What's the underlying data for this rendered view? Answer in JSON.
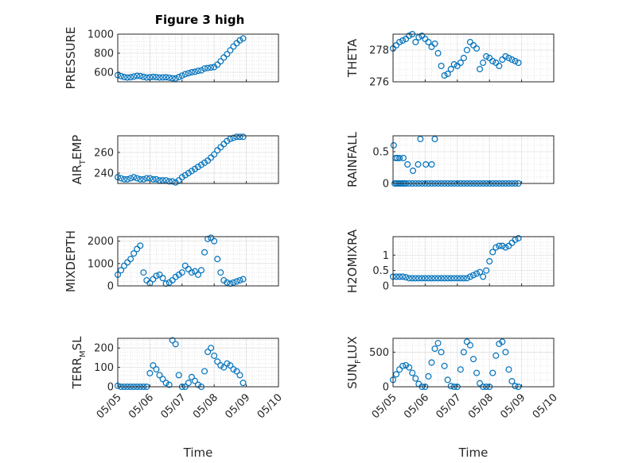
{
  "figure": {
    "title": "Figure 3 high"
  },
  "colors": {
    "marker": "#0072bd",
    "axis": "#262626",
    "grid": "#dfdfdf"
  },
  "chart_data": [
    {
      "type": "scatter",
      "ylabel_main": "PRESSURE",
      "ylabel_sub": "",
      "ylim": [
        500,
        1000
      ],
      "yticks": [
        600,
        800,
        1000
      ],
      "xlim": [
        0,
        5
      ],
      "xticks": [
        "05/05",
        "05/06",
        "05/07",
        "05/08",
        "05/09",
        "05/10"
      ],
      "xlabel": "",
      "grid": true,
      "x": [
        0,
        0.1,
        0.2,
        0.3,
        0.4,
        0.5,
        0.6,
        0.7,
        0.8,
        0.9,
        1.0,
        1.1,
        1.2,
        1.3,
        1.4,
        1.5,
        1.6,
        1.7,
        1.8,
        1.9,
        2.0,
        2.1,
        2.2,
        2.3,
        2.4,
        2.5,
        2.6,
        2.7,
        2.8,
        2.9,
        3.0,
        3.1,
        3.2,
        3.3,
        3.4,
        3.5,
        3.6,
        3.7,
        3.8,
        3.9
      ],
      "y": [
        570,
        560,
        550,
        545,
        548,
        555,
        562,
        560,
        552,
        545,
        548,
        552,
        549,
        545,
        546,
        548,
        543,
        538,
        535,
        550,
        565,
        580,
        590,
        600,
        605,
        615,
        620,
        640,
        645,
        650,
        655,
        680,
        715,
        755,
        790,
        830,
        870,
        905,
        935,
        955
      ]
    },
    {
      "type": "scatter",
      "ylabel_main": "THETA",
      "ylabel_sub": "",
      "ylim": [
        276,
        279
      ],
      "yticks": [
        276,
        278
      ],
      "xlim": [
        0,
        5
      ],
      "xticks": [
        "05/05",
        "05/06",
        "05/07",
        "05/08",
        "05/09",
        "05/10"
      ],
      "xlabel": "",
      "grid": true,
      "x": [
        0,
        0.1,
        0.2,
        0.3,
        0.4,
        0.5,
        0.6,
        0.7,
        0.8,
        0.9,
        1.0,
        1.1,
        1.2,
        1.3,
        1.4,
        1.5,
        1.6,
        1.7,
        1.8,
        1.9,
        2.0,
        2.1,
        2.2,
        2.3,
        2.4,
        2.5,
        2.6,
        2.7,
        2.8,
        2.9,
        3.0,
        3.1,
        3.2,
        3.3,
        3.4,
        3.5,
        3.6,
        3.7,
        3.8,
        3.9
      ],
      "y": [
        278.1,
        278.3,
        278.5,
        278.6,
        278.7,
        278.9,
        279.0,
        278.5,
        278.8,
        278.9,
        278.7,
        278.5,
        278.2,
        278.4,
        277.8,
        277.0,
        276.4,
        276.5,
        276.8,
        277.1,
        277.0,
        277.2,
        277.5,
        278.0,
        278.5,
        278.3,
        278.1,
        276.8,
        277.2,
        277.6,
        277.5,
        277.3,
        277.2,
        277.0,
        277.4,
        277.6,
        277.5,
        277.4,
        277.3,
        277.2
      ]
    },
    {
      "type": "scatter",
      "ylabel_main": "AIR",
      "ylabel_sub": "T",
      "ylabel_rest": "EMP",
      "ylim": [
        230,
        276
      ],
      "yticks": [
        240,
        260
      ],
      "xlim": [
        0,
        5
      ],
      "xticks": [
        "05/05",
        "05/06",
        "05/07",
        "05/08",
        "05/09",
        "05/10"
      ],
      "xlabel": "",
      "grid": true,
      "x": [
        0,
        0.1,
        0.2,
        0.3,
        0.4,
        0.5,
        0.6,
        0.7,
        0.8,
        0.9,
        1.0,
        1.1,
        1.2,
        1.3,
        1.4,
        1.5,
        1.6,
        1.7,
        1.8,
        1.9,
        2.0,
        2.1,
        2.2,
        2.3,
        2.4,
        2.5,
        2.6,
        2.7,
        2.8,
        2.9,
        3.0,
        3.1,
        3.2,
        3.3,
        3.4,
        3.5,
        3.6,
        3.7,
        3.8,
        3.9
      ],
      "y": [
        236,
        235,
        234,
        234,
        235,
        236,
        235,
        234,
        234,
        235,
        235,
        234,
        234,
        233,
        233,
        233,
        232,
        232,
        231,
        233,
        236,
        238,
        240,
        242,
        244,
        246,
        248,
        250,
        252,
        255,
        258,
        262,
        265,
        268,
        271,
        273,
        274,
        275,
        275,
        275
      ]
    },
    {
      "type": "scatter",
      "ylabel_main": "RAINFALL",
      "ylabel_sub": "",
      "ylim": [
        0,
        0.75
      ],
      "yticks": [
        0,
        0.5
      ],
      "xlim": [
        0,
        5
      ],
      "xticks": [
        "05/05",
        "05/06",
        "05/07",
        "05/08",
        "05/09",
        "05/10"
      ],
      "xlabel": "",
      "grid": true,
      "x": [
        0.02,
        0.05,
        0.1,
        0.15,
        0.2,
        0.25,
        0.3,
        0.35,
        0.4,
        0.5,
        0.6,
        0.7,
        0.8,
        0.9,
        1.0,
        1.1,
        1.2,
        1.3,
        1.4,
        1.5,
        1.6,
        1.7,
        1.8,
        1.9,
        2.0,
        2.1,
        2.2,
        2.3,
        2.4,
        2.5,
        2.6,
        2.7,
        2.8,
        2.9,
        3.0,
        3.1,
        3.2,
        3.3,
        3.4,
        3.5,
        3.6,
        3.7,
        3.8,
        3.9,
        0.08,
        0.13,
        0.2,
        0.32,
        0.45,
        0.62,
        0.78,
        0.85,
        1.02,
        1.2,
        1.3
      ],
      "y": [
        0.6,
        0,
        0,
        0,
        0,
        0,
        0,
        0,
        0,
        0,
        0,
        0,
        0,
        0,
        0,
        0,
        0,
        0,
        0,
        0,
        0,
        0,
        0,
        0,
        0,
        0,
        0,
        0,
        0,
        0,
        0,
        0,
        0,
        0,
        0,
        0,
        0,
        0,
        0,
        0,
        0,
        0,
        0,
        0,
        0.4,
        0.4,
        0.4,
        0.4,
        0.3,
        0.2,
        0.3,
        0.7,
        0.3,
        0.3,
        0.7
      ]
    },
    {
      "type": "scatter",
      "ylabel_main": "MIXDEPTH",
      "ylabel_sub": "",
      "ylim": [
        0,
        2200
      ],
      "yticks": [
        0,
        1000,
        2000
      ],
      "xlim": [
        0,
        5
      ],
      "xticks": [
        "05/05",
        "05/06",
        "05/07",
        "05/08",
        "05/09",
        "05/10"
      ],
      "xlabel": "",
      "grid": true,
      "x": [
        0,
        0.1,
        0.2,
        0.3,
        0.4,
        0.5,
        0.6,
        0.7,
        0.8,
        0.9,
        1.0,
        1.1,
        1.2,
        1.3,
        1.4,
        1.5,
        1.6,
        1.7,
        1.8,
        1.9,
        2.0,
        2.1,
        2.2,
        2.3,
        2.4,
        2.5,
        2.6,
        2.7,
        2.8,
        2.9,
        3.0,
        3.1,
        3.2,
        3.3,
        3.4,
        3.5,
        3.6,
        3.7,
        3.8,
        3.9
      ],
      "y": [
        500,
        700,
        900,
        1050,
        1200,
        1450,
        1650,
        1800,
        600,
        250,
        120,
        300,
        450,
        500,
        350,
        100,
        150,
        250,
        400,
        500,
        600,
        900,
        750,
        600,
        650,
        500,
        700,
        1500,
        2100,
        2150,
        2000,
        1200,
        600,
        250,
        150,
        100,
        150,
        200,
        250,
        300
      ]
    },
    {
      "type": "scatter",
      "ylabel_main": "H2OMIXRA",
      "ylabel_sub": "",
      "ylim": [
        0,
        1.6
      ],
      "yticks": [
        0,
        0.5,
        1
      ],
      "xlim": [
        0,
        5
      ],
      "xticks": [
        "05/05",
        "05/06",
        "05/07",
        "05/08",
        "05/09",
        "05/10"
      ],
      "xlabel": "",
      "grid": true,
      "x": [
        0,
        0.1,
        0.2,
        0.3,
        0.4,
        0.5,
        0.6,
        0.7,
        0.8,
        0.9,
        1.0,
        1.1,
        1.2,
        1.3,
        1.4,
        1.5,
        1.6,
        1.7,
        1.8,
        1.9,
        2.0,
        2.1,
        2.2,
        2.3,
        2.4,
        2.5,
        2.6,
        2.7,
        2.8,
        2.9,
        3.0,
        3.1,
        3.2,
        3.3,
        3.4,
        3.5,
        3.6,
        3.7,
        3.8,
        3.9
      ],
      "y": [
        0.3,
        0.3,
        0.3,
        0.3,
        0.28,
        0.25,
        0.25,
        0.25,
        0.25,
        0.25,
        0.25,
        0.25,
        0.25,
        0.25,
        0.25,
        0.25,
        0.25,
        0.25,
        0.25,
        0.25,
        0.25,
        0.25,
        0.25,
        0.25,
        0.3,
        0.35,
        0.4,
        0.45,
        0.3,
        0.5,
        0.8,
        1.1,
        1.25,
        1.3,
        1.3,
        1.25,
        1.3,
        1.4,
        1.5,
        1.55
      ]
    },
    {
      "type": "scatter",
      "ylabel_main": "TERR",
      "ylabel_sub": "M",
      "ylabel_rest": "SL",
      "ylim": [
        0,
        250
      ],
      "yticks": [
        0,
        100,
        200
      ],
      "xlim": [
        0,
        5
      ],
      "xticks": [
        "05/05",
        "05/06",
        "05/07",
        "05/08",
        "05/09",
        "05/10"
      ],
      "xlabel": "Time",
      "grid": true,
      "x": [
        0,
        0.1,
        0.2,
        0.3,
        0.4,
        0.5,
        0.6,
        0.7,
        0.8,
        0.9,
        1.0,
        1.1,
        1.2,
        1.3,
        1.4,
        1.5,
        1.6,
        1.7,
        1.8,
        1.9,
        2.0,
        2.1,
        2.2,
        2.3,
        2.4,
        2.5,
        2.6,
        2.7,
        2.8,
        2.9,
        3.0,
        3.1,
        3.2,
        3.3,
        3.4,
        3.5,
        3.6,
        3.7,
        3.8,
        3.9
      ],
      "y": [
        5,
        0,
        0,
        0,
        0,
        0,
        0,
        0,
        0,
        0,
        70,
        110,
        90,
        60,
        40,
        20,
        10,
        240,
        220,
        60,
        0,
        0,
        20,
        50,
        30,
        10,
        0,
        80,
        180,
        200,
        160,
        130,
        110,
        100,
        120,
        110,
        90,
        80,
        60,
        20
      ]
    },
    {
      "type": "scatter",
      "ylabel_main": "SUN",
      "ylabel_sub": "F",
      "ylabel_rest": "LUX",
      "ylim": [
        0,
        700
      ],
      "yticks": [
        0,
        500
      ],
      "xlim": [
        0,
        5
      ],
      "xticks": [
        "05/05",
        "05/06",
        "05/07",
        "05/08",
        "05/09",
        "05/10"
      ],
      "xlabel": "Time",
      "grid": true,
      "x": [
        0,
        0.1,
        0.2,
        0.3,
        0.4,
        0.5,
        0.6,
        0.7,
        0.8,
        0.9,
        1.0,
        1.1,
        1.2,
        1.3,
        1.4,
        1.5,
        1.6,
        1.7,
        1.8,
        1.9,
        2.0,
        2.1,
        2.2,
        2.3,
        2.4,
        2.5,
        2.6,
        2.7,
        2.8,
        2.9,
        3.0,
        3.1,
        3.2,
        3.3,
        3.4,
        3.5,
        3.6,
        3.7,
        3.8,
        3.9
      ],
      "y": [
        100,
        180,
        250,
        300,
        310,
        280,
        200,
        120,
        40,
        0,
        0,
        150,
        350,
        550,
        630,
        500,
        300,
        100,
        10,
        0,
        0,
        250,
        500,
        650,
        600,
        400,
        200,
        50,
        0,
        0,
        0,
        200,
        450,
        620,
        650,
        500,
        250,
        80,
        10,
        0
      ]
    }
  ]
}
